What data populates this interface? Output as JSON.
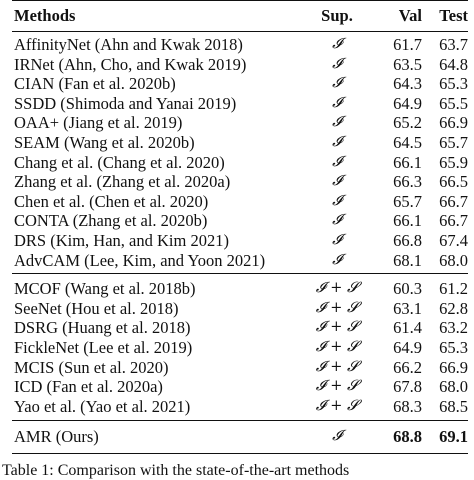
{
  "table": {
    "headers": [
      "Methods",
      "Sup.",
      "Val",
      "Test"
    ],
    "groups": [
      {
        "rows": [
          {
            "method": "AffinityNet (Ahn and Kwak 2018)",
            "sup": "𝓘",
            "val": "61.7",
            "test": "63.7"
          },
          {
            "method": "IRNet (Ahn, Cho, and Kwak 2019)",
            "sup": "𝓘",
            "val": "63.5",
            "test": "64.8"
          },
          {
            "method": "CIAN (Fan et al. 2020b)",
            "sup": "𝓘",
            "val": "64.3",
            "test": "65.3"
          },
          {
            "method": "SSDD (Shimoda and Yanai 2019)",
            "sup": "𝓘",
            "val": "64.9",
            "test": "65.5"
          },
          {
            "method": "OAA+ (Jiang et al. 2019)",
            "sup": "𝓘",
            "val": "65.2",
            "test": "66.9"
          },
          {
            "method": "SEAM (Wang et al. 2020b)",
            "sup": "𝓘",
            "val": "64.5",
            "test": "65.7"
          },
          {
            "method": "Chang et al. (Chang et al. 2020)",
            "sup": "𝓘",
            "val": "66.1",
            "test": "65.9"
          },
          {
            "method": "Zhang et al. (Zhang et al. 2020a)",
            "sup": "𝓘",
            "val": "66.3",
            "test": "66.5"
          },
          {
            "method": "Chen et al. (Chen et al. 2020)",
            "sup": "𝓘",
            "val": "65.7",
            "test": "66.7"
          },
          {
            "method": "CONTA (Zhang et al. 2020b)",
            "sup": "𝓘",
            "val": "66.1",
            "test": "66.7"
          },
          {
            "method": "DRS (Kim, Han, and Kim 2021)",
            "sup": "𝓘",
            "val": "66.8",
            "test": "67.4"
          },
          {
            "method": "AdvCAM (Lee, Kim, and Yoon 2021)",
            "sup": "𝓘",
            "val": "68.1",
            "test": "68.0"
          }
        ]
      },
      {
        "rows": [
          {
            "method": "MCOF (Wang et al. 2018b)",
            "sup": "𝓘 + 𝓢",
            "val": "60.3",
            "test": "61.2"
          },
          {
            "method": "SeeNet (Hou et al. 2018)",
            "sup": "𝓘 + 𝓢",
            "val": "63.1",
            "test": "62.8"
          },
          {
            "method": "DSRG (Huang et al. 2018)",
            "sup": "𝓘 + 𝓢",
            "val": "61.4",
            "test": "63.2"
          },
          {
            "method": "FickleNet (Lee et al. 2019)",
            "sup": "𝓘 + 𝓢",
            "val": "64.9",
            "test": "65.3"
          },
          {
            "method": "MCIS (Sun et al. 2020)",
            "sup": "𝓘 + 𝓢",
            "val": "66.2",
            "test": "66.9"
          },
          {
            "method": "ICD (Fan et al. 2020a)",
            "sup": "𝓘 + 𝓢",
            "val": "67.8",
            "test": "68.0"
          },
          {
            "method": "Yao et al. (Yao et al. 2021)",
            "sup": "𝓘 + 𝓢",
            "val": "68.3",
            "test": "68.5"
          }
        ]
      },
      {
        "rows": [
          {
            "method": "AMR (Ours)",
            "sup": "𝓘",
            "val": "68.8",
            "test": "69.1",
            "bold_scores": true
          }
        ]
      }
    ]
  },
  "caption": "Table 1: Comparison with the state-of-the-art methods"
}
